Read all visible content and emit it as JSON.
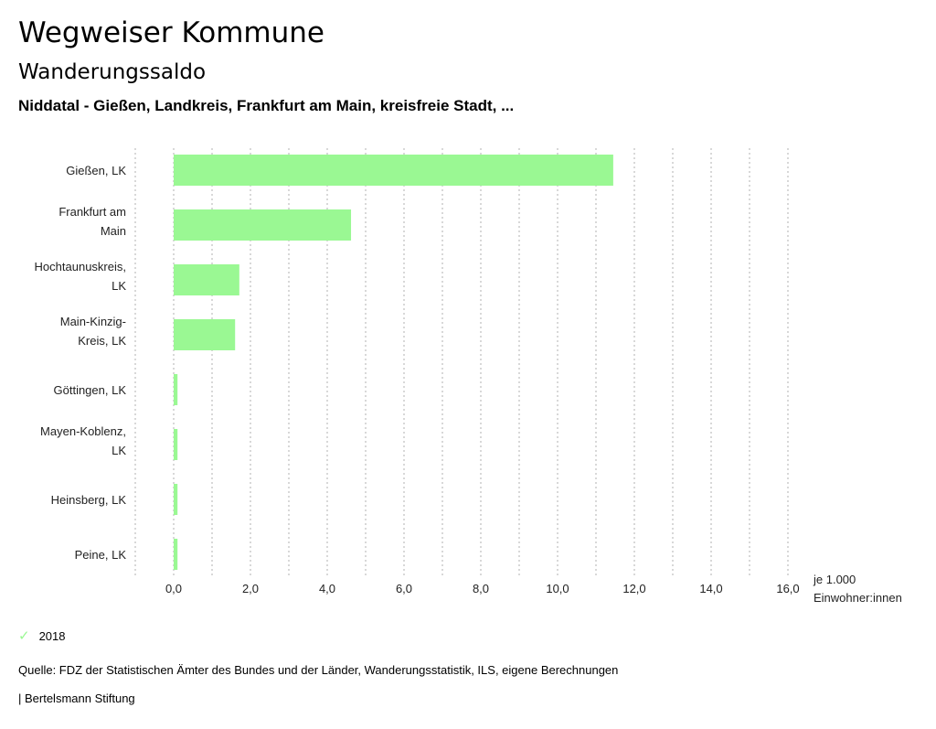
{
  "header": {
    "title": "Wegweiser Kommune",
    "subtitle": "Wanderungssaldo",
    "region": "Niddatal - Gießen, Landkreis, Frankfurt am Main, kreisfreie Stadt, ..."
  },
  "chart_data": {
    "type": "bar",
    "orientation": "horizontal",
    "categories": [
      [
        "Gießen, LK"
      ],
      [
        "Frankfurt am",
        "Main"
      ],
      [
        "Hochtaunuskreis,",
        "LK"
      ],
      [
        "Main-Kinzig-",
        "Kreis, LK"
      ],
      [
        "Göttingen, LK"
      ],
      [
        "Mayen-Koblenz,",
        "LK"
      ],
      [
        "Heinsberg, LK"
      ],
      [
        "Peine, LK"
      ]
    ],
    "series": [
      {
        "name": "2018",
        "values": [
          11.45,
          4.62,
          1.71,
          1.6,
          0.1,
          0.1,
          0.1,
          0.1
        ],
        "color": "#9af893"
      }
    ],
    "xlim": [
      -1,
      16
    ],
    "xticks": [
      0,
      2,
      4,
      6,
      8,
      10,
      12,
      14,
      16
    ],
    "xtick_labels": [
      "0,0",
      "2,0",
      "4,0",
      "6,0",
      "8,0",
      "10,0",
      "12,0",
      "14,0",
      "16,0"
    ],
    "xlabel": [
      "je 1.000",
      "Einwohner:innen"
    ],
    "grid": true,
    "legend_position": "bottom-left"
  },
  "legend": {
    "label": "2018",
    "icon": "check-icon"
  },
  "footer": {
    "source": "Quelle: FDZ der Statistischen Ämter des Bundes und der Länder, Wanderungsstatistik, ILS, eigene Berechnungen",
    "brand": "| Bertelsmann Stiftung"
  }
}
